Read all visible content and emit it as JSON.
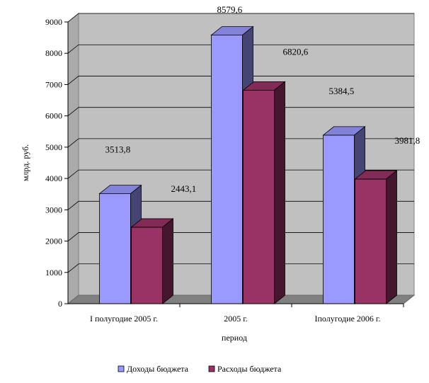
{
  "chart_data": {
    "type": "bar",
    "style": "3d-clustered-column",
    "categories": [
      "I полугодие 2005 г.",
      "2005 г.",
      "Iполугодие 2006 г."
    ],
    "series": [
      {
        "name": "Доходы бюджета",
        "values": [
          3513.8,
          8579.6,
          5384.5
        ],
        "labels": [
          "3513,8",
          "8579,6",
          "5384,5"
        ],
        "color": "#9999ff"
      },
      {
        "name": "Расходы бюджета",
        "values": [
          2443.1,
          6820.6,
          3981.8
        ],
        "labels": [
          "2443,1",
          "6820,6",
          "3981,8"
        ],
        "color": "#993366"
      }
    ],
    "xlabel": "период",
    "ylabel": "млрд. руб.",
    "ylim": [
      0,
      9000
    ],
    "yticks": [
      "0",
      "1000",
      "2000",
      "3000",
      "4000",
      "5000",
      "6000",
      "7000",
      "8000",
      "9000"
    ],
    "grid": true,
    "legend": "bottom",
    "colors": {
      "wall": "#c0c0c0",
      "floor": "#808080"
    }
  }
}
